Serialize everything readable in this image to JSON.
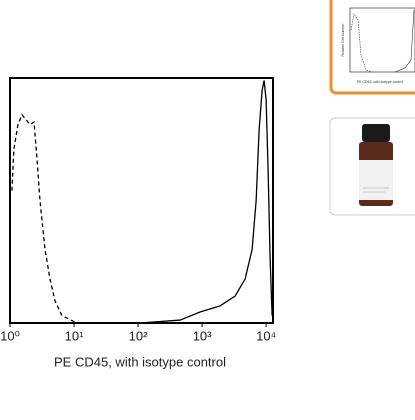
{
  "chart_data": {
    "type": "line",
    "x_label": "PE CD45, with isotype control",
    "log_x": true,
    "xlim": [
      1,
      12800
    ],
    "ylim": [
      0,
      100
    ],
    "xticks": [
      {
        "value": 1,
        "label": "10⁰"
      },
      {
        "value": 10,
        "label": "10¹"
      },
      {
        "value": 100,
        "label": "10²"
      },
      {
        "value": 1000,
        "label": "10³"
      },
      {
        "value": 10000,
        "label": "10⁴"
      }
    ],
    "series": [
      {
        "color": "#000000",
        "dash": true,
        "x": [
          1.07,
          1.15,
          1.33,
          1.54,
          1.78,
          2.05,
          2.37,
          2.64,
          2.94,
          3.52,
          4.21,
          5.04,
          6.49,
          10.3
        ],
        "values": [
          54,
          71,
          81,
          85,
          83,
          81,
          82,
          67,
          50,
          30,
          18,
          9,
          3,
          0.4
        ]
      },
      {
        "color": "#000000",
        "dash": false,
        "x": [
          107,
          453,
          930,
          1910,
          3280,
          4700,
          6040,
          6980,
          7780,
          8660,
          9300,
          10000,
          10740,
          11550,
          12400
        ],
        "values": [
          0,
          1.2,
          4.5,
          7,
          11,
          18,
          30,
          50,
          79,
          95,
          99,
          91,
          62,
          26,
          3
        ]
      }
    ]
  },
  "thumbnails": [
    {
      "x_label": "PE CD45, with isotype control",
      "y_label": "Relative Cell Number"
    }
  ]
}
